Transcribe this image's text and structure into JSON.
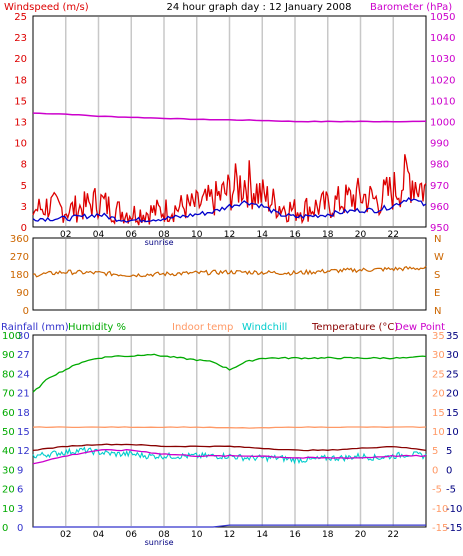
{
  "header": {
    "title": "24 hour graph day : 12 January 2008",
    "left_label": "Windspeed (m/s)",
    "right_label": "Barometer (hPa)"
  },
  "colors": {
    "windspeed": "#dd0000",
    "windavg": "#0000cc",
    "barometer": "#cc00cc",
    "wind_dir": "#cc6600",
    "rainfall": "#3333cc",
    "humidity": "#00aa00",
    "indoor": "#ff9966",
    "windchill": "#00cccc",
    "temperature": "#880000",
    "dewpoint": "#cc00cc",
    "grid": "#c8c8c8"
  },
  "chart_data": [
    {
      "type": "line",
      "panel": "wind-barometer",
      "x_ticks": [
        "02",
        "04",
        "06",
        "08",
        "10",
        "12",
        "14",
        "16",
        "18",
        "20",
        "22"
      ],
      "x_extra_label": "sunrise",
      "left_axis": {
        "label": "Windspeed (m/s)",
        "ticks": [
          "0",
          "3",
          "5",
          "8",
          "10",
          "13",
          "15",
          "18",
          "20",
          "23",
          "25"
        ],
        "ylim": [
          0,
          25
        ]
      },
      "right_axis": {
        "label": "Barometer (hPa)",
        "ticks": [
          "950",
          "960",
          "970",
          "980",
          "990",
          "1000",
          "1010",
          "1020",
          "1030",
          "1040",
          "1050"
        ],
        "ylim": [
          950,
          1050
        ]
      },
      "series": [
        {
          "name": "Windspeed (m/s)",
          "x": [
            0,
            1,
            2,
            3,
            4,
            5,
            6,
            7,
            8,
            9,
            10,
            11,
            12,
            13,
            14,
            15,
            16,
            17,
            18,
            19,
            20,
            21,
            22,
            23,
            24
          ],
          "values": [
            1.5,
            2.0,
            1.5,
            1.8,
            2.5,
            1.5,
            1.2,
            1.3,
            1.5,
            1.8,
            2.0,
            2.5,
            3.5,
            4.5,
            3.0,
            2.0,
            1.5,
            1.8,
            2.0,
            2.5,
            3.0,
            2.5,
            3.5,
            5.0,
            3.5
          ]
        },
        {
          "name": "Wind average",
          "x": [
            0,
            1,
            2,
            3,
            4,
            5,
            6,
            7,
            8,
            9,
            10,
            11,
            12,
            13,
            14,
            15,
            16,
            17,
            18,
            19,
            20,
            21,
            22,
            23,
            24
          ],
          "values": [
            1.0,
            1.0,
            1.0,
            1.2,
            1.5,
            1.0,
            0.8,
            0.9,
            1.0,
            1.2,
            1.5,
            1.8,
            2.5,
            3.0,
            2.5,
            1.5,
            1.2,
            1.3,
            1.5,
            1.8,
            2.0,
            2.0,
            2.5,
            3.5,
            2.5
          ]
        },
        {
          "name": "Barometer (hPa)",
          "x": [
            0,
            2,
            4,
            6,
            8,
            10,
            12,
            14,
            16,
            18,
            20,
            22,
            24
          ],
          "values": [
            1004,
            1003.5,
            1002.5,
            1002,
            1001.5,
            1001,
            1000.8,
            1000.5,
            1000,
            1000,
            1000,
            1000,
            1000
          ]
        }
      ]
    },
    {
      "type": "line",
      "panel": "wind-direction",
      "left_axis": {
        "ticks": [
          "360",
          "270",
          "180",
          "90",
          "0"
        ],
        "ylim": [
          0,
          360
        ]
      },
      "right_axis": {
        "ticks": [
          "N",
          "W",
          "S",
          "E",
          "N"
        ]
      },
      "series": [
        {
          "name": "Wind direction",
          "x": [
            0,
            2,
            4,
            6,
            8,
            10,
            12,
            14,
            16,
            18,
            20,
            22,
            24
          ],
          "values": [
            175,
            190,
            185,
            175,
            180,
            185,
            190,
            188,
            185,
            195,
            200,
            205,
            210
          ]
        }
      ]
    },
    {
      "type": "line",
      "panel": "temperature-humidity",
      "x_ticks": [
        "02",
        "04",
        "06",
        "08",
        "10",
        "12",
        "14",
        "16",
        "18",
        "20",
        "22"
      ],
      "x_extra_label": "sunrise",
      "legend": [
        "Rainfall (mm)",
        "Humidity %",
        "Indoor temp",
        "Windchill",
        "Temperature (°C)",
        "Dew Point"
      ],
      "left_axis": {
        "ticks_rain": [
          "30",
          "27",
          "24",
          "21",
          "18",
          "15",
          "12",
          "9",
          "6",
          "3",
          "0"
        ],
        "ticks_humidity": [
          "100",
          "90",
          "80",
          "70",
          "60",
          "50",
          "40",
          "30",
          "20",
          "10",
          "0"
        ]
      },
      "right_axis": {
        "ticks": [
          "35",
          "30",
          "25",
          "20",
          "15",
          "10",
          "5",
          "0",
          "-5",
          "-10",
          "-15"
        ],
        "ylim": [
          -15,
          35
        ]
      },
      "series": [
        {
          "name": "Humidity %",
          "x": [
            0,
            1,
            2,
            3,
            4,
            5,
            6,
            7,
            8,
            9,
            10,
            11,
            12,
            13,
            14,
            15,
            16,
            17,
            18,
            19,
            20,
            21,
            22,
            23,
            24
          ],
          "values": [
            70,
            78,
            82,
            86,
            88,
            89,
            89,
            90,
            89,
            88,
            87,
            86,
            82,
            86,
            88,
            88,
            88,
            88,
            88,
            88,
            88,
            88,
            88,
            88,
            89
          ]
        },
        {
          "name": "Indoor temp",
          "x": [
            0,
            2,
            4,
            6,
            8,
            10,
            12,
            14,
            16,
            18,
            20,
            22,
            24
          ],
          "values": [
            11,
            11,
            11,
            11,
            11,
            11,
            10.8,
            10.8,
            11,
            11,
            11,
            11,
            11
          ]
        },
        {
          "name": "Windchill",
          "x": [
            0,
            1,
            2,
            3,
            4,
            5,
            6,
            7,
            8,
            9,
            10,
            11,
            12,
            13,
            14,
            15,
            16,
            17,
            18,
            19,
            20,
            21,
            22,
            23,
            24
          ],
          "values": [
            3.5,
            4,
            4.5,
            5,
            4.5,
            4,
            4,
            3.5,
            3.5,
            3.5,
            3.5,
            3.5,
            3.5,
            3,
            3,
            3,
            2.5,
            2.5,
            3,
            3,
            3.5,
            3,
            3.5,
            4,
            3.5
          ]
        },
        {
          "name": "Temperature (°C)",
          "x": [
            0,
            2,
            4,
            6,
            8,
            10,
            12,
            14,
            16,
            18,
            20,
            22,
            24
          ],
          "values": [
            5,
            6,
            6.5,
            6.5,
            6,
            6,
            6,
            5.5,
            5,
            5,
            5.5,
            6,
            5
          ]
        },
        {
          "name": "Dew Point",
          "x": [
            0,
            2,
            4,
            6,
            8,
            10,
            12,
            14,
            16,
            18,
            20,
            22,
            24
          ],
          "values": [
            1.5,
            3.5,
            5,
            5,
            4,
            3.5,
            3.5,
            3.5,
            3,
            3,
            3,
            3.5,
            3.5
          ]
        },
        {
          "name": "Rainfall (mm)",
          "x": [
            0,
            11,
            11.1,
            24
          ],
          "values": [
            0,
            0,
            0.3,
            0.3
          ]
        }
      ]
    }
  ]
}
